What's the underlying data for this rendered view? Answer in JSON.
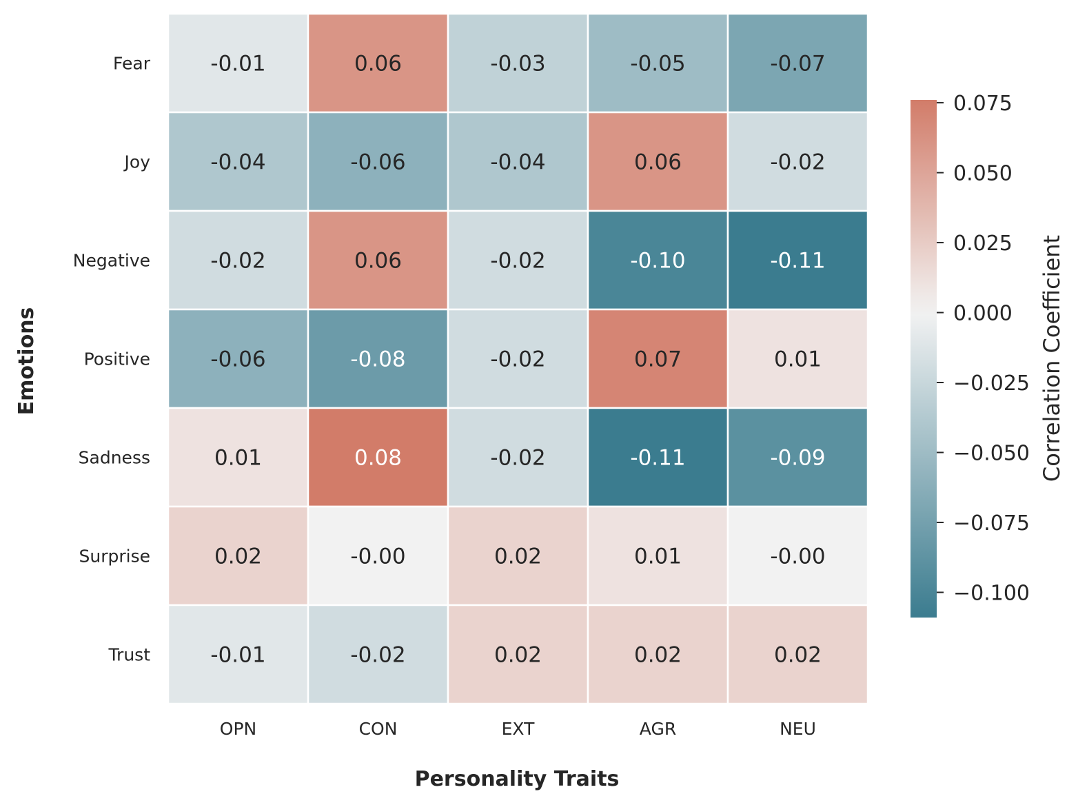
{
  "chart_data": {
    "type": "heatmap",
    "title": "",
    "xlabel": "Personality Traits",
    "ylabel": "Emotions",
    "x_categories": [
      "OPN",
      "CON",
      "EXT",
      "AGR",
      "NEU"
    ],
    "y_categories": [
      "Fear",
      "Joy",
      "Negative",
      "Positive",
      "Sadness",
      "Surprise",
      "Trust"
    ],
    "values": [
      [
        -0.01,
        0.06,
        -0.03,
        -0.05,
        -0.07
      ],
      [
        -0.04,
        -0.06,
        -0.04,
        0.06,
        -0.02
      ],
      [
        -0.02,
        0.06,
        -0.02,
        -0.1,
        -0.11
      ],
      [
        -0.06,
        -0.08,
        -0.02,
        0.07,
        0.01
      ],
      [
        0.01,
        0.08,
        -0.02,
        -0.11,
        -0.09
      ],
      [
        0.02,
        -0.0,
        0.02,
        0.01,
        -0.0
      ],
      [
        -0.01,
        -0.02,
        0.02,
        0.02,
        0.02
      ]
    ],
    "cell_labels": [
      [
        "-0.01",
        "0.06",
        "-0.03",
        "-0.05",
        "-0.07"
      ],
      [
        "-0.04",
        "-0.06",
        "-0.04",
        "0.06",
        "-0.02"
      ],
      [
        "-0.02",
        "0.06",
        "-0.02",
        "-0.10",
        "-0.11"
      ],
      [
        "-0.06",
        "-0.08",
        "-0.02",
        "0.07",
        "0.01"
      ],
      [
        "0.01",
        "0.08",
        "-0.02",
        "-0.11",
        "-0.09"
      ],
      [
        "0.02",
        "-0.00",
        "0.02",
        "0.01",
        "-0.00"
      ],
      [
        "-0.01",
        "-0.02",
        "0.02",
        "0.02",
        "0.02"
      ]
    ],
    "colorbar": {
      "label": "Correlation Coefficient",
      "min": -0.109,
      "max": 0.076,
      "ticks": [
        0.075,
        0.05,
        0.025,
        0.0,
        -0.025,
        -0.05,
        -0.075,
        -0.1
      ],
      "tick_labels": [
        "0.075",
        "0.050",
        "0.025",
        "0.000",
        "−0.025",
        "−0.050",
        "−0.075",
        "−0.100"
      ]
    },
    "colormap": {
      "negative": "#3b7c8f",
      "center": "#f2f2f2",
      "positive": "#d27c69"
    },
    "grid": false
  }
}
